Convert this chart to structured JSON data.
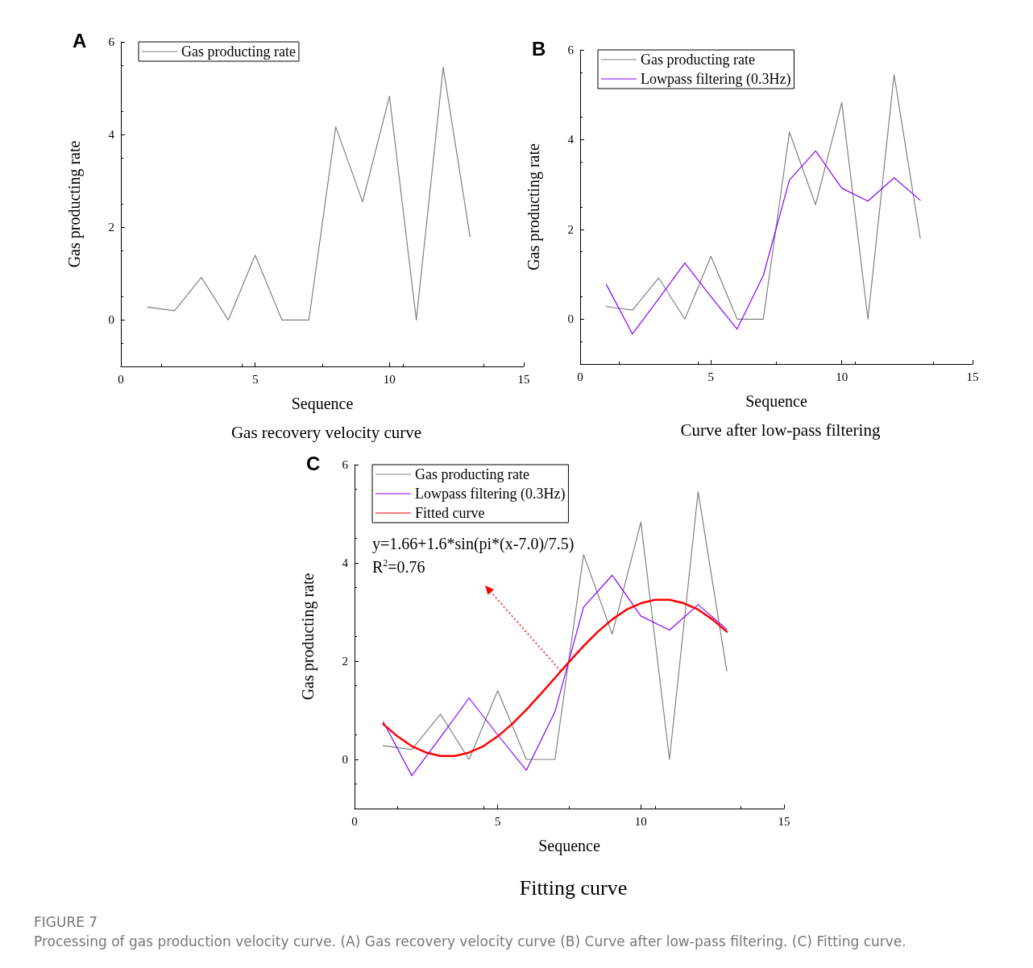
{
  "chart_data": [
    {
      "type": "line",
      "title": "Gas recovery velocity curve",
      "xlabel": "Sequence",
      "ylabel": "Gas producting rate",
      "annotations": [
        "A"
      ],
      "x": [
        1,
        2,
        3,
        4,
        5,
        6,
        7,
        8,
        9,
        10,
        11,
        12,
        13
      ],
      "series": [
        {
          "name": "Gas producting rate",
          "color": "#808080",
          "values": [
            0.28,
            0.2,
            0.92,
            0,
            1.4,
            0,
            0,
            4.17,
            2.55,
            4.83,
            0,
            5.45,
            1.8
          ]
        }
      ],
      "xlim": [
        0,
        15
      ],
      "xticks": [
        0,
        5,
        10,
        15
      ],
      "ylim": [
        -1,
        6
      ],
      "yticks": [
        0,
        2,
        4,
        6
      ],
      "grid": false,
      "legend": "top left",
      "marker": "none",
      "line_style": "solid"
    },
    {
      "type": "line",
      "title": "Curve after low-pass filtering",
      "xlabel": "Sequence",
      "ylabel": "Gas producting rate",
      "annotations": [
        "B"
      ],
      "x": [
        1,
        2,
        3,
        4,
        5,
        6,
        7,
        8,
        9,
        10,
        11,
        12,
        13
      ],
      "series": [
        {
          "name": "Gas producting rate",
          "color": "#808080",
          "values": [
            0.28,
            0.2,
            0.92,
            0,
            1.4,
            0,
            0,
            4.17,
            2.55,
            4.83,
            0,
            5.45,
            1.8
          ]
        },
        {
          "name": "Lowpass filtering (0.3Hz)",
          "color": "#8b00ff",
          "values": [
            0.77,
            -0.33,
            0.45,
            1.25,
            0.5,
            -0.22,
            0.97,
            3.1,
            3.75,
            2.92,
            2.63,
            3.15,
            2.65
          ]
        }
      ],
      "xlim": [
        0,
        15
      ],
      "xticks": [
        0,
        5,
        10,
        15
      ],
      "ylim": [
        -1,
        6
      ],
      "yticks": [
        0,
        2,
        4,
        6
      ],
      "grid": false,
      "legend": "top left",
      "marker": "none",
      "line_style": "solid"
    },
    {
      "type": "line",
      "title": "Fitting curve",
      "xlabel": "Sequence",
      "ylabel": "Gas producting rate",
      "annotations": [
        "C",
        "y=1.66+1.6*sin(pi*(x-7.0)/7.5)",
        "R$^{2}$=0.76",
        "FIGURE 7",
        "Processing of gas production velocity curve. (A) Gas recovery velocity curve (B) Curve after low-pass filtering. (C) Fitting curve."
      ],
      "x": [
        1,
        2,
        3,
        4,
        5,
        6,
        7,
        8,
        9,
        10,
        11,
        12,
        13
      ],
      "series": [
        {
          "name": "Gas producting rate",
          "color": "#808080",
          "values": [
            0.28,
            0.2,
            0.92,
            0,
            1.4,
            0,
            0,
            4.17,
            2.55,
            4.83,
            0,
            5.45,
            1.8
          ]
        },
        {
          "name": "Lowpass filtering (0.3Hz)",
          "color": "#8b00ff",
          "values": [
            0.77,
            -0.33,
            0.45,
            1.25,
            0.5,
            -0.22,
            0.97,
            3.1,
            3.75,
            2.92,
            2.63,
            3.15,
            2.65
          ]
        },
        {
          "name": "Fitted curve",
          "color": "#ff0000",
          "x": [
            1,
            1.5,
            2,
            2.5,
            3,
            3.5,
            4,
            4.5,
            5,
            5.5,
            6,
            6.5,
            7,
            7.5,
            8,
            8.5,
            9,
            9.5,
            10,
            10.5,
            11,
            11.5,
            12,
            12.5,
            13
          ],
          "values": [
            0.72,
            0.47,
            0.27,
            0.14,
            0.07,
            0.07,
            0.14,
            0.27,
            0.47,
            0.72,
            1.01,
            1.33,
            1.66,
            1.99,
            2.31,
            2.6,
            2.85,
            3.05,
            3.18,
            3.25,
            3.25,
            3.18,
            3.05,
            2.85,
            2.6
          ]
        }
      ],
      "xlim": [
        0,
        15
      ],
      "xticks": [
        0,
        5,
        10,
        15
      ],
      "ylim": [
        -1,
        6
      ],
      "yticks": [
        0,
        2,
        4,
        6
      ],
      "grid": false,
      "legend": "top left",
      "marker": "none",
      "line_style": "solid"
    }
  ]
}
